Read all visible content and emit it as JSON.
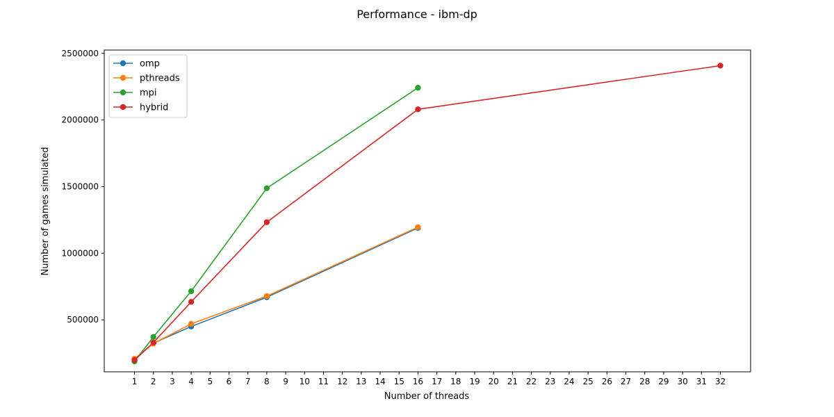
{
  "chart_data": {
    "type": "line",
    "title": "Performance - ibm-dp",
    "xlabel": "Number of threads",
    "ylabel": "Number of games simulated",
    "xlim": [
      -0.6,
      33.6
    ],
    "ylim": [
      110000,
      2525000
    ],
    "xticks": [
      1,
      2,
      3,
      4,
      5,
      6,
      7,
      8,
      9,
      10,
      11,
      12,
      13,
      14,
      15,
      16,
      17,
      18,
      19,
      20,
      21,
      22,
      23,
      24,
      25,
      26,
      27,
      28,
      29,
      30,
      31,
      32
    ],
    "yticks": [
      500000,
      1000000,
      1500000,
      2000000,
      2500000
    ],
    "ytick_labels": [
      "500000",
      "1000000",
      "1500000",
      "2000000",
      "2500000"
    ],
    "grid": false,
    "legend_position": "top-left",
    "series": [
      {
        "name": "omp",
        "color": "#1f77b4",
        "x": [
          1,
          2,
          4,
          8,
          16
        ],
        "y": [
          205000,
          325000,
          450000,
          670000,
          1190000
        ]
      },
      {
        "name": "pthreads",
        "color": "#ff7f0e",
        "x": [
          1,
          2,
          4,
          8,
          16
        ],
        "y": [
          208000,
          322000,
          470000,
          678000,
          1196000
        ]
      },
      {
        "name": "mpi",
        "color": "#2ca02c",
        "x": [
          1,
          2,
          4,
          8,
          16
        ],
        "y": [
          188000,
          372000,
          715000,
          1488000,
          2242000
        ]
      },
      {
        "name": "hybrid",
        "color": "#d62728",
        "x": [
          1,
          2,
          4,
          8,
          16,
          32
        ],
        "y": [
          198000,
          330000,
          635000,
          1233000,
          2080000,
          2408000
        ]
      }
    ]
  }
}
